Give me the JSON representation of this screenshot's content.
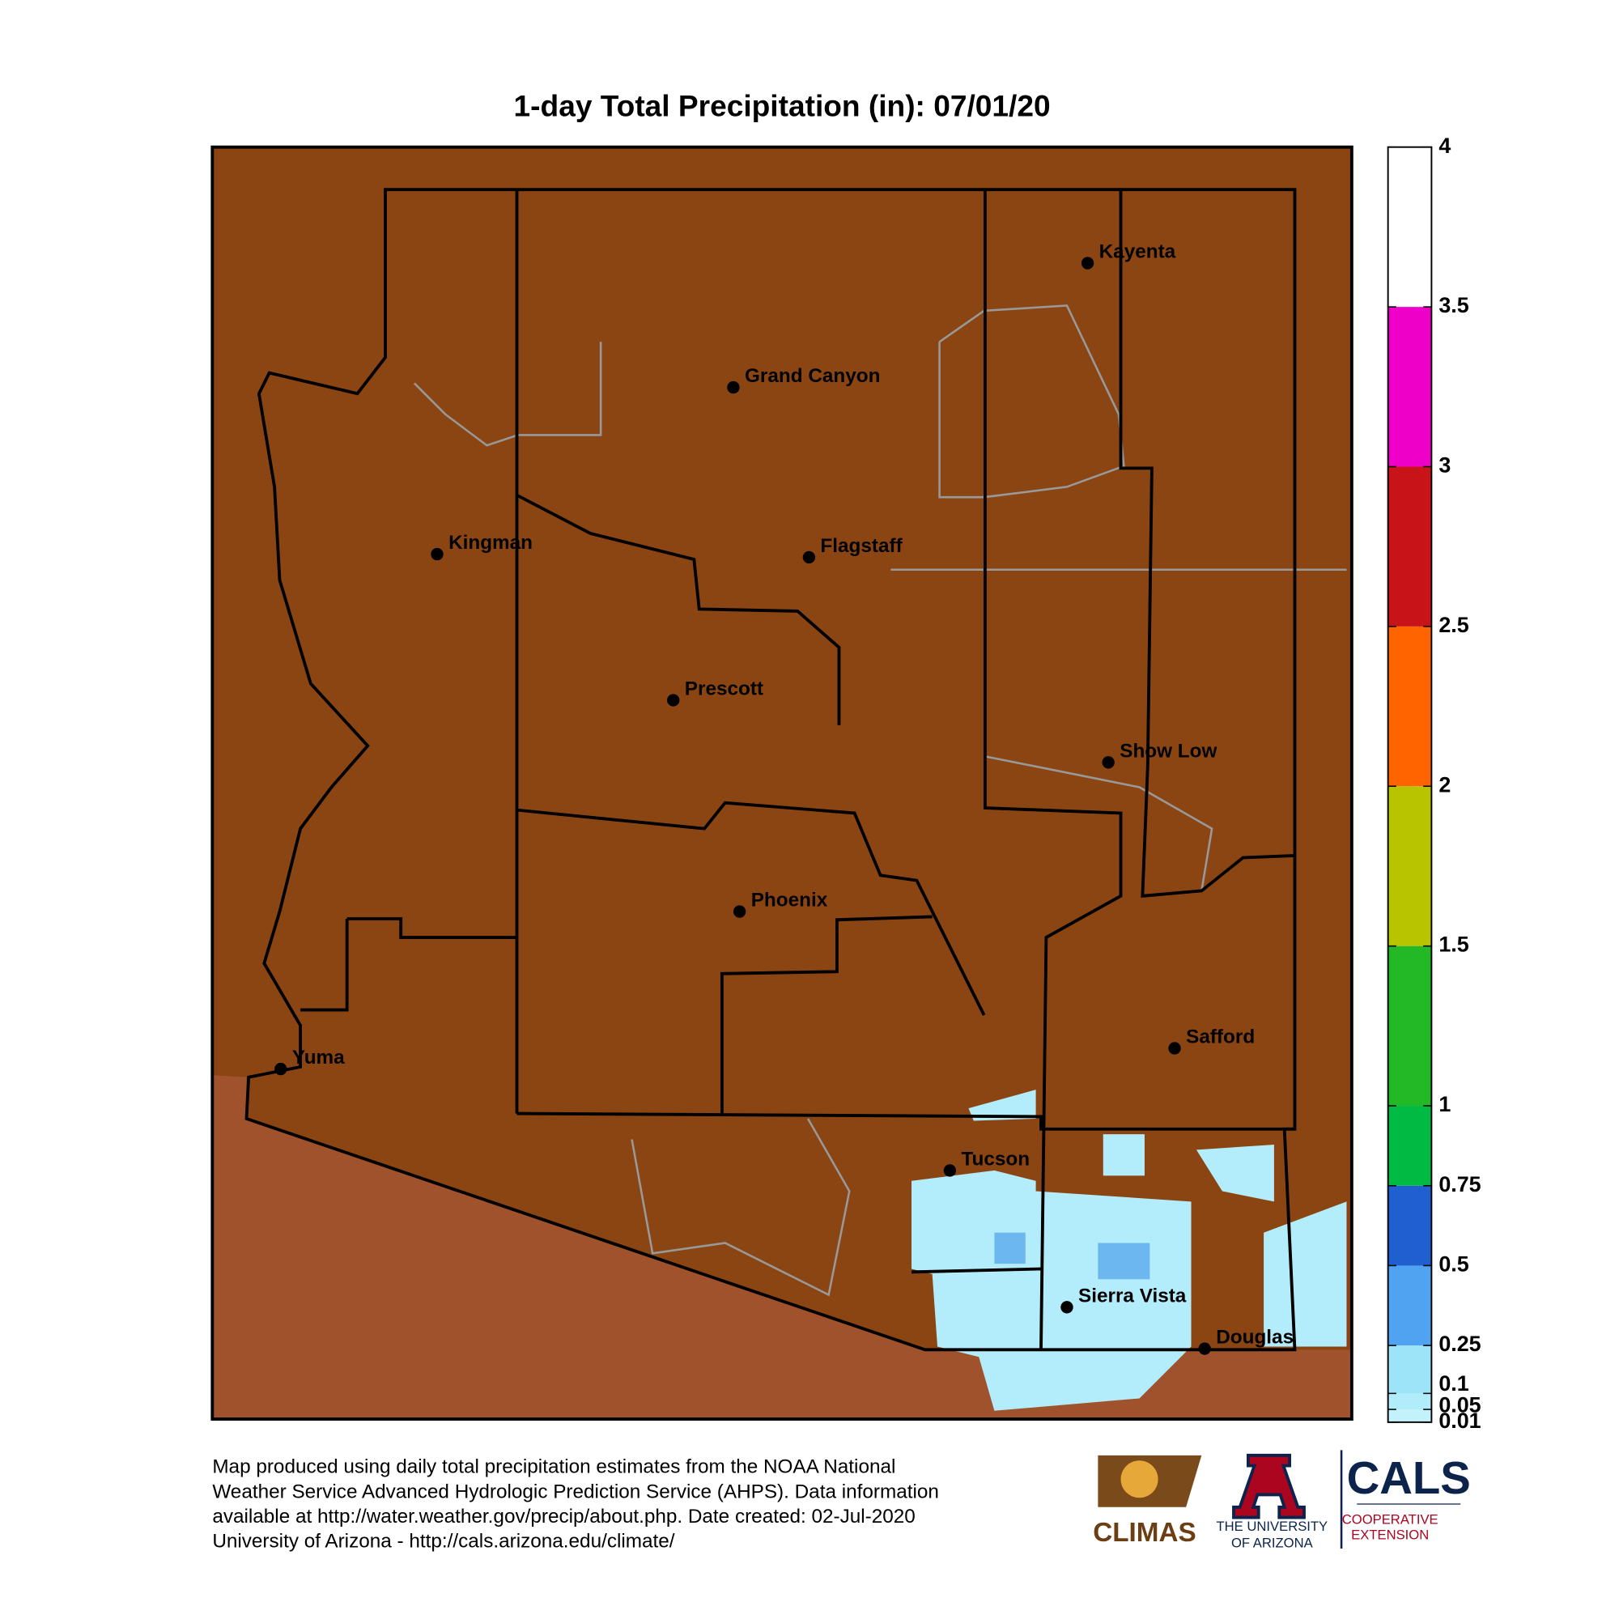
{
  "title": "1-day Total Precipitation (in): 07/01/20",
  "cities": [
    "Kayenta",
    "Grand Canyon",
    "Kingman",
    "Flagstaff",
    "Prescott",
    "Show Low",
    "Phoenix",
    "Safford",
    "Yuma",
    "Tucson",
    "Sierra Vista",
    "Douglas"
  ],
  "colorbar": {
    "ticks": [
      0.01,
      0.05,
      0.1,
      0.25,
      0.5,
      0.75,
      1,
      1.5,
      2,
      2.5,
      3,
      3.5,
      4
    ],
    "colors": [
      "#c4f2fc",
      "#b0ecfa",
      "#9ee4f8",
      "#4fa3f0",
      "#1f5fcf",
      "#00ba44",
      "#22b826",
      "#b8c400",
      "#ff6400",
      "#c81418",
      "#ee00c8",
      "#ffffff"
    ],
    "lim": [
      0.01,
      4
    ]
  },
  "footer": [
    "Map produced using daily total precipitation estimates from the NOAA National",
    "Weather Service Advanced Hydrologic Prediction Service (AHPS). Data information",
    "available at http://water.weather.gov/precip/about.php. Date created: 02-Jul-2020",
    "University of Arizona - http://cals.arizona.edu/climate/"
  ],
  "logos": {
    "climas": "CLIMAS",
    "ua_line1": "THE UNIVERSITY",
    "ua_line2": "OF ARIZONA",
    "cals": "CALS",
    "cals_line1": "COOPERATIVE",
    "cals_line2": "EXTENSION"
  }
}
